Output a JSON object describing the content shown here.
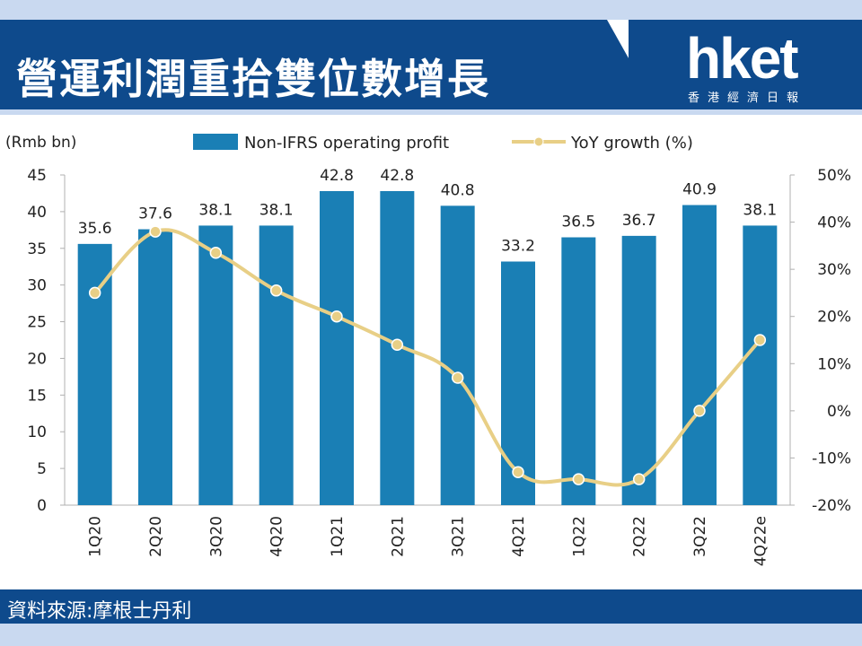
{
  "header": {
    "title": "營運利潤重拾雙位數增長",
    "logo": "hket",
    "logo_sub": "香港經濟日報"
  },
  "footer": {
    "source": "資料來源:摩根士丹利"
  },
  "colors": {
    "bar": "#1a7fb5",
    "line": "#e8cf86",
    "band": "#0e4a8c"
  },
  "chart_data": {
    "type": "bar",
    "categories": [
      "1Q20",
      "2Q20",
      "3Q20",
      "4Q20",
      "1Q21",
      "2Q21",
      "3Q21",
      "4Q21",
      "1Q22",
      "2Q22",
      "3Q22",
      "4Q22e"
    ],
    "series": [
      {
        "name": "Non-IFRS operating profit",
        "type": "bar",
        "axis": "left",
        "values": [
          35.6,
          37.6,
          38.1,
          38.1,
          42.8,
          42.8,
          40.8,
          33.2,
          36.5,
          36.7,
          40.9,
          38.1
        ],
        "labels": [
          "35.6",
          "37.6",
          "38.1",
          "38.1",
          "42.8",
          "42.8",
          "40.8",
          "33.2",
          "36.5",
          "36.7",
          "40.9",
          "38.1"
        ]
      },
      {
        "name": "YoY growth (%)",
        "type": "line",
        "axis": "right",
        "values": [
          25,
          38,
          33.5,
          25.5,
          20,
          14,
          7,
          -13,
          -14.5,
          -14.5,
          0,
          15
        ]
      }
    ],
    "left_axis": {
      "label": "(Rmb bn)",
      "ylim": [
        0,
        45
      ],
      "ticks": [
        "0",
        "5",
        "10",
        "15",
        "20",
        "25",
        "30",
        "35",
        "40",
        "45"
      ]
    },
    "right_axis": {
      "ylim": [
        -20,
        50
      ],
      "ticks": [
        "-20%",
        "-10%",
        "0%",
        "10%",
        "20%",
        "30%",
        "40%",
        "50%"
      ]
    },
    "legend": {
      "placement": "top",
      "items": [
        "Non-IFRS operating profit",
        "YoY growth (%)"
      ]
    },
    "grid": false
  }
}
